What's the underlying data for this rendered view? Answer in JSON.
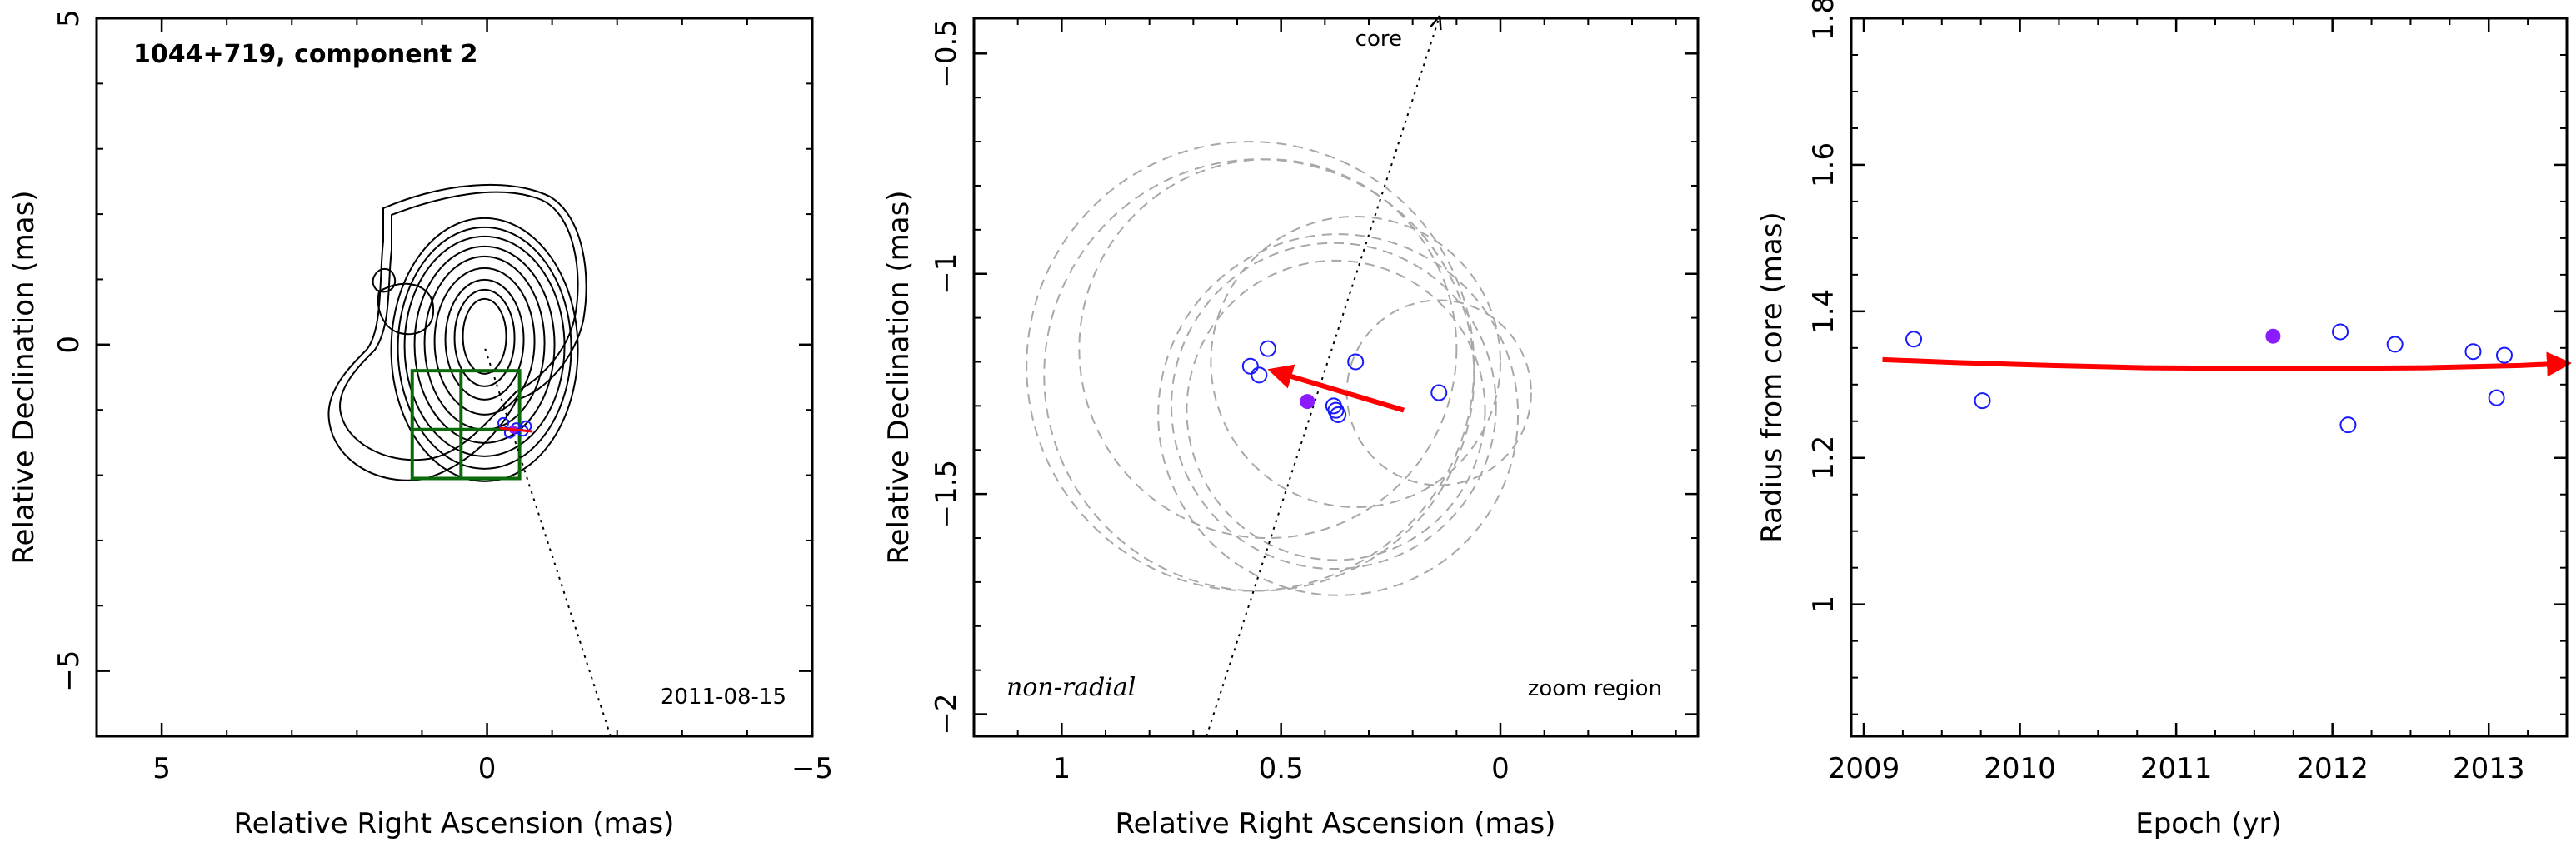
{
  "chart_data": [
    {
      "type": "contour",
      "title": "1044+719, component 2",
      "date_label": "2011-08-15",
      "xlabel": "Relative Right Ascension (mas)",
      "ylabel": "Relative Declination (mas)",
      "xlim": [
        6,
        -5
      ],
      "ylim": [
        -6,
        5
      ],
      "xticks": [
        5,
        0,
        -5
      ],
      "yticks": [
        5,
        0,
        -5
      ],
      "component_position": [
        -0.4,
        -1.3
      ],
      "jet_direction_line": [
        [
          -1.9,
          -6
        ],
        [
          0.05,
          0
        ]
      ],
      "contour_levels": 10,
      "colors": {
        "contour": "#000000",
        "zoom_box": "#0b6b0b",
        "marker": "#1a1aff",
        "arrow": "#ff0000"
      }
    },
    {
      "type": "scatter",
      "label_mode": "non-radial",
      "region_label": "zoom region",
      "core_label": "core",
      "xlabel": "Relative Right Ascension (mas)",
      "ylabel": "Relative Declination (mas)",
      "xlim": [
        1.2,
        -0.45
      ],
      "ylim": [
        -2.05,
        -0.42
      ],
      "xticks": [
        1,
        0.5,
        0
      ],
      "yticks": [
        -0.5,
        -1,
        -1.5,
        -2
      ],
      "points": [
        {
          "x": 0.57,
          "y": -1.21
        },
        {
          "x": 0.55,
          "y": -1.23
        },
        {
          "x": 0.53,
          "y": -1.17
        },
        {
          "x": 0.38,
          "y": -1.3
        },
        {
          "x": 0.375,
          "y": -1.31
        },
        {
          "x": 0.37,
          "y": -1.32
        },
        {
          "x": 0.33,
          "y": -1.2
        },
        {
          "x": 0.14,
          "y": -1.27
        }
      ],
      "mean_point": {
        "x": 0.44,
        "y": -1.29
      },
      "motion_vector": {
        "from": [
          0.22,
          -1.31
        ],
        "to": [
          0.52,
          -1.22
        ]
      },
      "core_direction": {
        "from": [
          0.67,
          -2.05
        ],
        "to": [
          0.14,
          -0.42
        ]
      },
      "uncertainty_circles": [
        {
          "x": 0.57,
          "y": -1.21,
          "r": 0.51
        },
        {
          "x": 0.55,
          "y": -1.23,
          "r": 0.49
        },
        {
          "x": 0.53,
          "y": -1.17,
          "r": 0.43
        },
        {
          "x": 0.38,
          "y": -1.3,
          "r": 0.37
        },
        {
          "x": 0.375,
          "y": -1.31,
          "r": 0.34
        },
        {
          "x": 0.37,
          "y": -1.32,
          "r": 0.41
        },
        {
          "x": 0.33,
          "y": -1.2,
          "r": 0.33
        },
        {
          "x": 0.14,
          "y": -1.27,
          "r": 0.21
        }
      ],
      "colors": {
        "point": "#1a1aff",
        "mean": "#8a1cff",
        "arrow": "#ff0000",
        "circle": "#a8a8a8"
      }
    },
    {
      "type": "scatter",
      "xlabel": "Epoch (yr)",
      "ylabel": "Radius from core (mas)",
      "xlim": [
        2008.92,
        2013.5
      ],
      "ylim": [
        0.82,
        1.8
      ],
      "xticks": [
        2009,
        2010,
        2011,
        2012,
        2013
      ],
      "yticks": [
        1,
        1.2,
        1.4,
        1.6,
        1.8
      ],
      "points": [
        {
          "x": 2009.32,
          "y": 1.362
        },
        {
          "x": 2009.76,
          "y": 1.278
        },
        {
          "x": 2012.05,
          "y": 1.372
        },
        {
          "x": 2012.1,
          "y": 1.245
        },
        {
          "x": 2012.4,
          "y": 1.355
        },
        {
          "x": 2012.9,
          "y": 1.345
        },
        {
          "x": 2013.05,
          "y": 1.282
        },
        {
          "x": 2013.1,
          "y": 1.34
        }
      ],
      "mean_point": {
        "x": 2011.62,
        "y": 1.366
      },
      "fit_curve": {
        "x": [
          2009.12,
          2009.6,
          2010.2,
          2010.8,
          2011.4,
          2012.0,
          2012.6,
          2013.2,
          2013.5
        ],
        "y": [
          1.334,
          1.33,
          1.326,
          1.323,
          1.322,
          1.322,
          1.323,
          1.326,
          1.329
        ]
      },
      "colors": {
        "point": "#1a1aff",
        "mean": "#8a1cff",
        "fit": "#ff0000"
      }
    }
  ]
}
